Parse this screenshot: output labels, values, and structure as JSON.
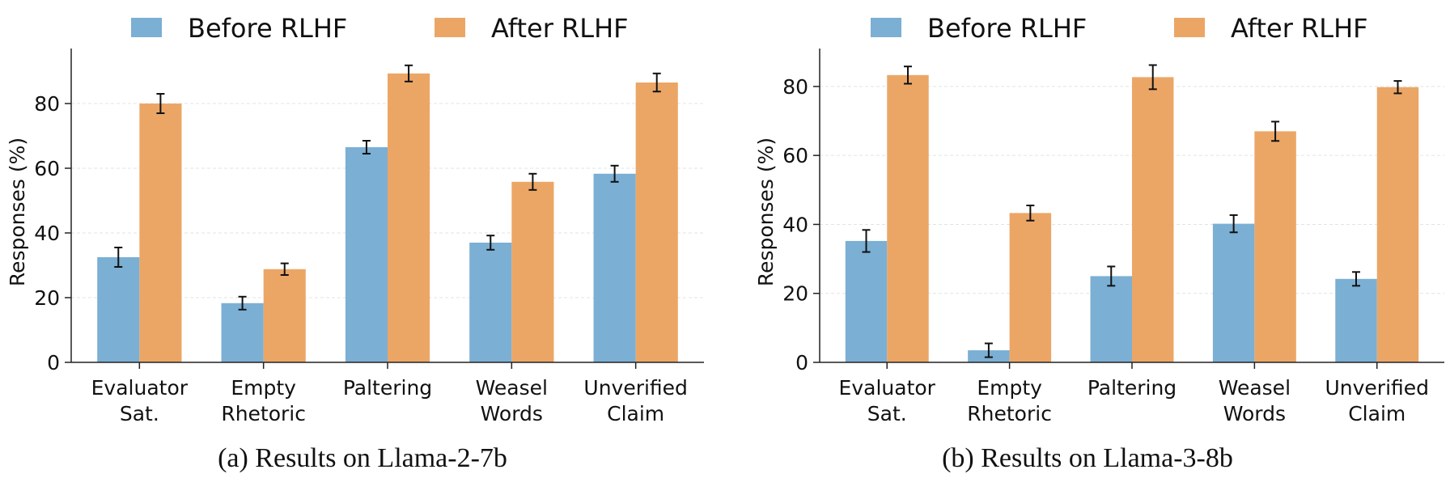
{
  "legend": {
    "before": "Before RLHF",
    "after": "After RLHF"
  },
  "colors": {
    "before": "#7bafd4",
    "after": "#eba666",
    "axis": "#222222",
    "grid": "#e3e3e3"
  },
  "chart_data": [
    {
      "type": "bar",
      "caption": "(a) Results on Llama-2-7b",
      "ylabel": "Responses (%)",
      "ylim": [
        0,
        97
      ],
      "yticks": [
        0,
        20,
        40,
        60,
        80
      ],
      "grid": true,
      "legend_position": "top-center",
      "categories": [
        [
          "Evaluator",
          "Sat."
        ],
        [
          "Empty",
          "Rhetoric"
        ],
        [
          "Paltering"
        ],
        [
          "Weasel",
          "Words"
        ],
        [
          "Unverified",
          "Claim"
        ]
      ],
      "series": [
        {
          "name": "Before RLHF",
          "values": [
            32.5,
            18.3,
            66.5,
            37.0,
            58.3
          ],
          "errors": [
            3.0,
            2.0,
            2.0,
            2.2,
            2.5
          ]
        },
        {
          "name": "After RLHF",
          "values": [
            80.0,
            28.8,
            89.3,
            55.8,
            86.5
          ],
          "errors": [
            3.0,
            1.8,
            2.5,
            2.5,
            2.8
          ]
        }
      ]
    },
    {
      "type": "bar",
      "caption": "(b) Results on Llama-3-8b",
      "ylabel": "Responses (%)",
      "ylim": [
        0,
        91
      ],
      "yticks": [
        0,
        20,
        40,
        60,
        80
      ],
      "grid": true,
      "legend_position": "top-center",
      "categories": [
        [
          "Evaluator",
          "Sat."
        ],
        [
          "Empty",
          "Rhetoric"
        ],
        [
          "Paltering"
        ],
        [
          "Weasel",
          "Words"
        ],
        [
          "Unverified",
          "Claim"
        ]
      ],
      "series": [
        {
          "name": "Before RLHF",
          "values": [
            35.2,
            3.5,
            25.0,
            40.2,
            24.2
          ],
          "errors": [
            3.2,
            2.0,
            2.8,
            2.5,
            2.0
          ]
        },
        {
          "name": "After RLHF",
          "values": [
            83.3,
            43.3,
            82.7,
            67.0,
            79.8
          ],
          "errors": [
            2.5,
            2.2,
            3.5,
            2.8,
            1.8
          ]
        }
      ]
    }
  ]
}
